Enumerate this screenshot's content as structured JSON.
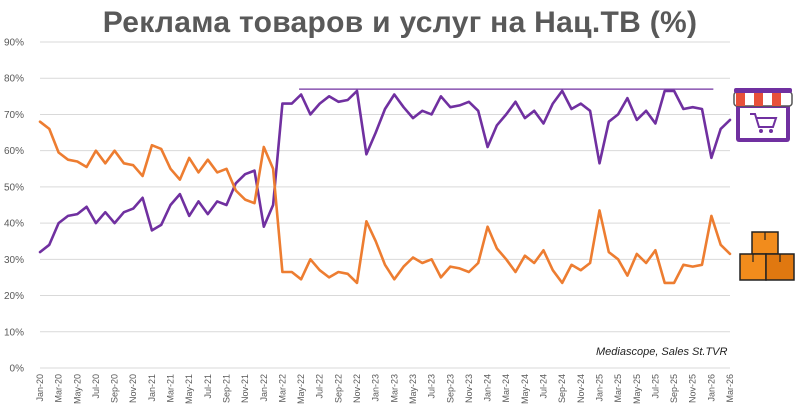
{
  "chart_data": {
    "type": "line",
    "title": "Реклама товаров и услуг на Нац.ТВ (%)",
    "source_note": "Mediascope, Sales St.TVR",
    "ylim": [
      0,
      90
    ],
    "yticks": [
      "0%",
      "10%",
      "20%",
      "30%",
      "40%",
      "50%",
      "60%",
      "70%",
      "80%",
      "90%"
    ],
    "ytick_values": [
      0,
      10,
      20,
      30,
      40,
      50,
      60,
      70,
      80,
      90
    ],
    "grid": "horizontal",
    "months_count": 75,
    "x_labels": [
      "Jan-20",
      "Mar-20",
      "May-20",
      "Jul-20",
      "Sep-20",
      "Nov-20",
      "Jan-21",
      "Mar-21",
      "May-21",
      "Jul-21",
      "Sep-21",
      "Nov-21",
      "Jan-22",
      "Mar-22",
      "May-22",
      "Jul-22",
      "Sep-22",
      "Nov-22",
      "Jan-23",
      "Mar-23",
      "May-23",
      "Jul-23",
      "Sep-23",
      "Nov-23",
      "Jan-24",
      "Mar-24",
      "May-24",
      "Jul-24",
      "Sep-24",
      "Nov-24",
      "Jan-25",
      "Mar-25",
      "May-25",
      "Jul-25",
      "Sep-25",
      "Nov-25",
      "Jan-26",
      "Mar-26"
    ],
    "series": [
      {
        "icon": "store-icon",
        "color": "#7030a0",
        "values": [
          32,
          34,
          40,
          42,
          42.5,
          44.5,
          40,
          43,
          40,
          43,
          44,
          47,
          38,
          39.5,
          45,
          48,
          42,
          46,
          42.5,
          46,
          45,
          51,
          53.5,
          54.5,
          39,
          45,
          73,
          73,
          75.5,
          70,
          73,
          75,
          73.5,
          74,
          76.5,
          59,
          65,
          71.5,
          75.5,
          72,
          69,
          71,
          70,
          75,
          72,
          72.5,
          73.5,
          71,
          61,
          67,
          70,
          73.5,
          69,
          71,
          67.5,
          73,
          76.5,
          71.5,
          73,
          71,
          56.5,
          68,
          70,
          74.5,
          68.5,
          71,
          67.5,
          76.5,
          76.5,
          71.5,
          72,
          71.5,
          58,
          66,
          68.5
        ]
      },
      {
        "icon": "boxes-icon",
        "color": "#ed7d31",
        "values": [
          68,
          66,
          59.5,
          57.5,
          57,
          55.5,
          60,
          56.5,
          60,
          56.5,
          56,
          53,
          61.5,
          60.5,
          55,
          52,
          58,
          54,
          57.5,
          54,
          55,
          49,
          46.5,
          45.5,
          61,
          55,
          26.5,
          26.5,
          24.5,
          30,
          27,
          25,
          26.5,
          26,
          23.5,
          40.5,
          35,
          28.5,
          24.5,
          28,
          30.5,
          29,
          30,
          25,
          28,
          27.5,
          26.5,
          29,
          39,
          33,
          30,
          26.5,
          31,
          29,
          32.5,
          27,
          23.5,
          28.5,
          27,
          29,
          43.5,
          32,
          30,
          25.5,
          31.5,
          29,
          32.5,
          23.5,
          23.5,
          28.5,
          28,
          28.5,
          42,
          34,
          31.5
        ]
      }
    ],
    "annotations": [
      {
        "type": "reference-line",
        "value": 77,
        "from_label": "May-22",
        "to_label": "Jan-26",
        "color": "#7030a0"
      }
    ]
  }
}
